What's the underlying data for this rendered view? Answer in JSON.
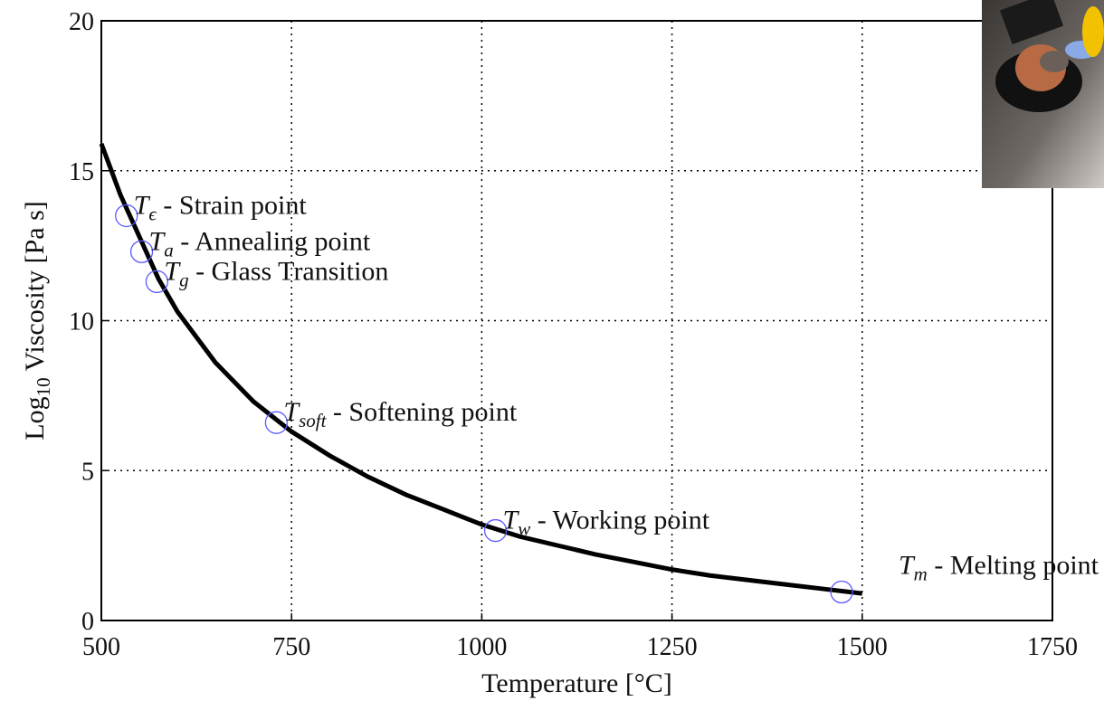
{
  "chart_data": {
    "type": "line",
    "xlabel": "Temperature [°C]",
    "ylabel": {
      "main": "Log",
      "sub": "10",
      "rest": " Viscosity [Pa s]"
    },
    "x": [
      500,
      525,
      550,
      575,
      600,
      650,
      700,
      750,
      800,
      850,
      900,
      950,
      1000,
      1050,
      1100,
      1150,
      1200,
      1250,
      1300,
      1350,
      1400,
      1450,
      1500
    ],
    "series": [
      {
        "color": "#000000",
        "values": [
          15.9,
          14.2,
          12.8,
          11.4,
          10.3,
          8.6,
          7.3,
          6.3,
          5.5,
          4.8,
          4.2,
          3.7,
          3.2,
          2.8,
          2.5,
          2.2,
          1.95,
          1.7,
          1.5,
          1.35,
          1.2,
          1.05,
          0.9
        ]
      }
    ],
    "xlim": [
      500,
      1750
    ],
    "ylim": [
      0,
      20
    ],
    "xticks": [
      500,
      750,
      1000,
      1250,
      1500,
      1750
    ],
    "yticks": [
      0,
      5,
      10,
      15,
      20
    ],
    "grid": true,
    "marker_color": "#5a5aff",
    "annotations": [
      {
        "x": 533,
        "y": 13.5,
        "symbol": "T",
        "subscript": "ϵ",
        "text": " - Strain point"
      },
      {
        "x": 553,
        "y": 12.3,
        "symbol": "T",
        "subscript": "a",
        "text": " - Annealing point"
      },
      {
        "x": 573,
        "y": 11.3,
        "symbol": "T",
        "subscript": "g",
        "text": " - Glass Transition"
      },
      {
        "x": 730,
        "y": 6.6,
        "symbol": "T",
        "subscript": "soft",
        "text": " - Softening point"
      },
      {
        "x": 1018,
        "y": 3.0,
        "symbol": "T",
        "subscript": "w",
        "text": " - Working point"
      },
      {
        "x": 1473,
        "y": 0.95,
        "symbol": "T",
        "subscript": "m",
        "text": " - Melting point"
      }
    ]
  }
}
